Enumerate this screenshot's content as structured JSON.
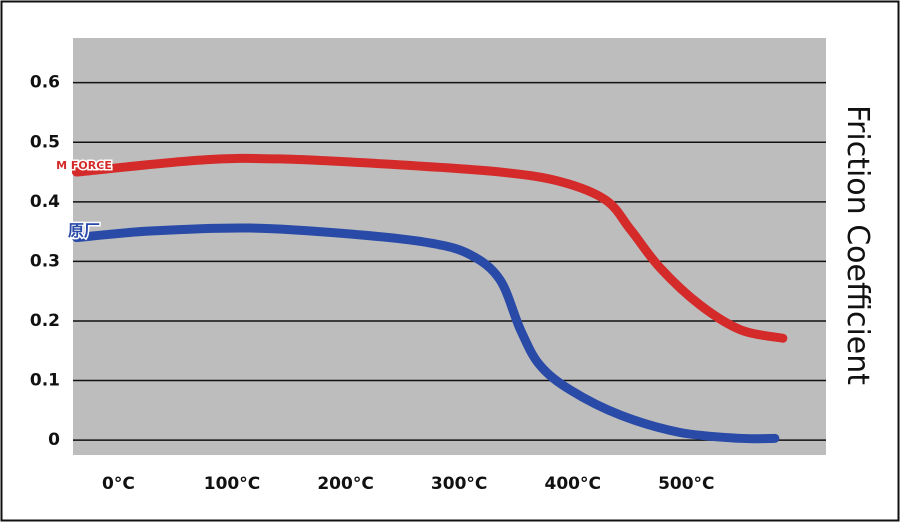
{
  "chart_data": {
    "type": "line",
    "y_label": "Friction Coefficient",
    "xlim": [
      -40,
      623
    ],
    "ylim": [
      -0.025,
      0.675
    ],
    "xticks": [
      {
        "value": 0,
        "label": "0°C"
      },
      {
        "value": 100,
        "label": "100°C"
      },
      {
        "value": 200,
        "label": "200°C"
      },
      {
        "value": 300,
        "label": "300°C"
      },
      {
        "value": 400,
        "label": "400°C"
      },
      {
        "value": 500,
        "label": "500°C"
      }
    ],
    "yticks": [
      0,
      0.1,
      0.2,
      0.3,
      0.4,
      0.5,
      0.6
    ],
    "grid": true,
    "series": [
      {
        "name": "M FORCE",
        "color": "#d42a2a",
        "x": [
          -37,
          72,
          142,
          248,
          336,
          389,
          429,
          451,
          477,
          512,
          548,
          585
        ],
        "values": [
          0.45,
          0.47,
          0.472,
          0.462,
          0.45,
          0.434,
          0.403,
          0.353,
          0.289,
          0.227,
          0.185,
          0.171
        ]
      },
      {
        "name": "原厂",
        "color": "#2a4aa8",
        "x": [
          -37,
          28,
          116,
          204,
          274,
          310,
          336,
          354,
          371,
          398,
          442,
          494,
          547,
          578
        ],
        "values": [
          0.34,
          0.351,
          0.356,
          0.346,
          0.331,
          0.311,
          0.269,
          0.185,
          0.126,
          0.084,
          0.042,
          0.013,
          0.003,
          0.003
        ]
      }
    ]
  }
}
